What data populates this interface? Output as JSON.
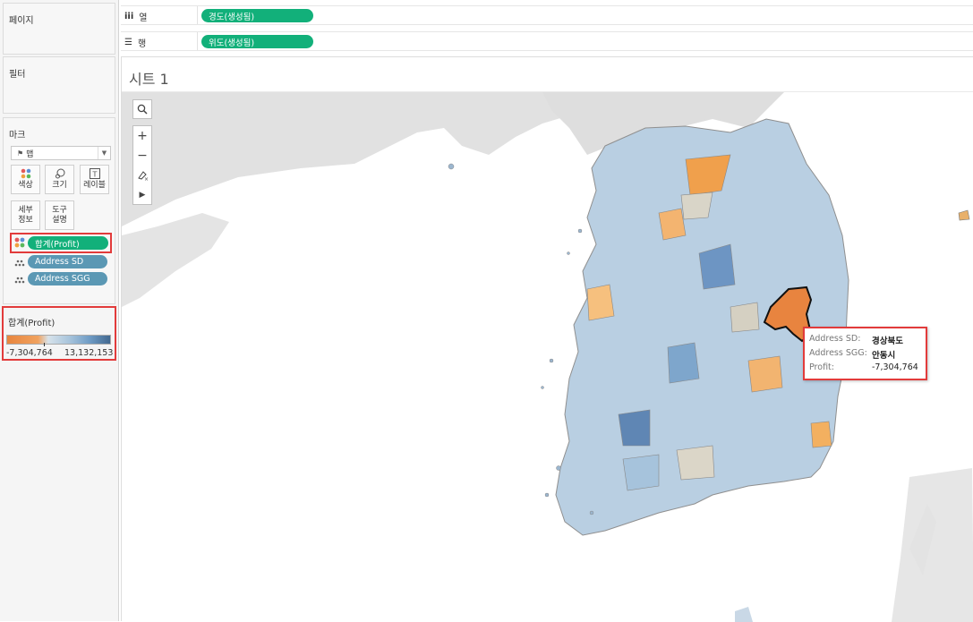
{
  "left_panel": {
    "pages_title": "페이지",
    "filters_title": "필터",
    "marks": {
      "title": "마크",
      "mark_type": "맵",
      "buttons": {
        "color": "색상",
        "size": "크기",
        "label": "레이블",
        "detail_line1": "세부",
        "detail_line2": "정보",
        "tooltip_line1": "도구",
        "tooltip_line2": "설명"
      },
      "pills": [
        {
          "label": "합계(Profit)",
          "icon": "color-dots-icon"
        },
        {
          "label": "Address SD",
          "icon": "detail-dots-icon"
        },
        {
          "label": "Address SGG",
          "icon": "detail-dots-icon"
        }
      ]
    },
    "legend": {
      "title": "합계(Profit)",
      "min_label": "-7,304,764",
      "max_label": "13,132,153",
      "colors": {
        "low": "#e8853e",
        "mid": "#d7e2ea",
        "high": "#42688f"
      }
    }
  },
  "shelves": {
    "columns": {
      "icon": "iii",
      "label": "열",
      "pill": "경도(생성됨)"
    },
    "rows": {
      "icon": "☰",
      "label": "행",
      "pill": "위도(생성됨)"
    }
  },
  "sheet": {
    "title": "시트 1",
    "map_tools": [
      "search-icon",
      "zoom-in-icon",
      "zoom-out-icon",
      "pan-pin-icon",
      "expand-arrow-icon"
    ]
  },
  "tooltip": {
    "row1_key": "Address SD:",
    "row1_val": "경상북도",
    "row2_key": "Address SGG:",
    "row2_val": "안동시",
    "row3_key": "Profit:",
    "row3_val": "-7,304,764"
  },
  "colors": {
    "accent_green": "#12b07a",
    "pill_blue": "#5b98b4",
    "highlight_red": "#e23b3b",
    "selected_region": "#e8843f"
  }
}
